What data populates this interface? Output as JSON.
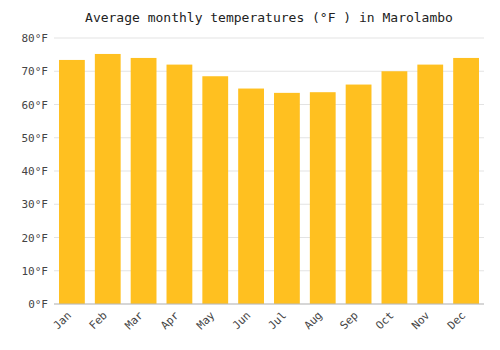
{
  "chart_data": {
    "type": "bar",
    "title": "Average monthly temperatures (°F ) in Marolambo",
    "categories": [
      "Jan",
      "Feb",
      "Mar",
      "Apr",
      "May",
      "Jun",
      "Jul",
      "Aug",
      "Sep",
      "Oct",
      "Nov",
      "Dec"
    ],
    "values": [
      73.4,
      75.2,
      74.0,
      72.0,
      68.5,
      64.8,
      63.5,
      63.7,
      66.0,
      70.0,
      72.0,
      74.0
    ],
    "color": "#FFC020",
    "ylim": [
      0,
      80
    ],
    "yticks": [
      {
        "value": 0,
        "label": "0°F"
      },
      {
        "value": 10,
        "label": "10°F"
      },
      {
        "value": 20,
        "label": "20°F"
      },
      {
        "value": 30,
        "label": "30°F"
      },
      {
        "value": 40,
        "label": "40°F"
      },
      {
        "value": 50,
        "label": "50°F"
      },
      {
        "value": 60,
        "label": "60°F"
      },
      {
        "value": 70,
        "label": "70°F"
      },
      {
        "value": 80,
        "label": "80°F"
      }
    ],
    "grid": true
  }
}
